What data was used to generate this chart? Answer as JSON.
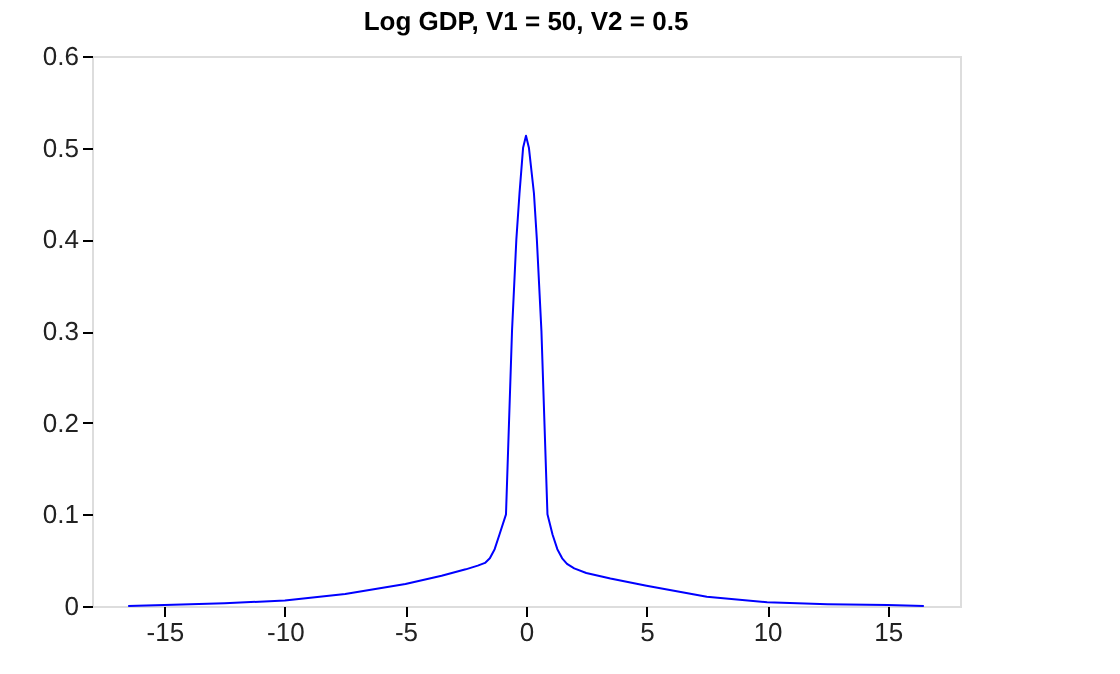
{
  "chart_data": {
    "type": "line",
    "title": "Log GDP, V1 = 50, V2 = 0.5",
    "x": [
      -16.5,
      -15,
      -12.5,
      -10,
      -7.5,
      -5,
      -3.5,
      -2.5,
      -2,
      -1.7,
      -1.5,
      -1.3,
      -1.1,
      -0.83,
      -0.58,
      -0.4,
      -0.27,
      -0.12,
      0,
      0.12,
      0.33,
      0.45,
      0.64,
      0.89,
      1.1,
      1.3,
      1.5,
      1.7,
      2,
      2.5,
      3.5,
      5,
      7.5,
      10,
      12.5,
      15,
      16.5
    ],
    "series": [
      {
        "color": "#0000ff",
        "values": [
          0,
          0.001,
          0.003,
          0.006,
          0.013,
          0.024,
          0.033,
          0.04,
          0.044,
          0.047,
          0.052,
          0.062,
          0.078,
          0.1,
          0.3,
          0.4,
          0.45,
          0.5,
          0.513,
          0.5,
          0.45,
          0.4,
          0.3,
          0.1,
          0.078,
          0.062,
          0.052,
          0.046,
          0.041,
          0.036,
          0.03,
          0.022,
          0.01,
          0.004,
          0.002,
          0.001,
          0
        ]
      }
    ],
    "xlim": [
      -18,
      18
    ],
    "xticks": [
      -15,
      -10,
      -5,
      0,
      5,
      10,
      15
    ],
    "ylim": [
      0,
      0.6
    ],
    "yticks": [
      0,
      0.1,
      0.2,
      0.3,
      0.4,
      0.5,
      0.6
    ],
    "grid": false,
    "legend": false,
    "line_style": "solid",
    "marker": "none"
  }
}
